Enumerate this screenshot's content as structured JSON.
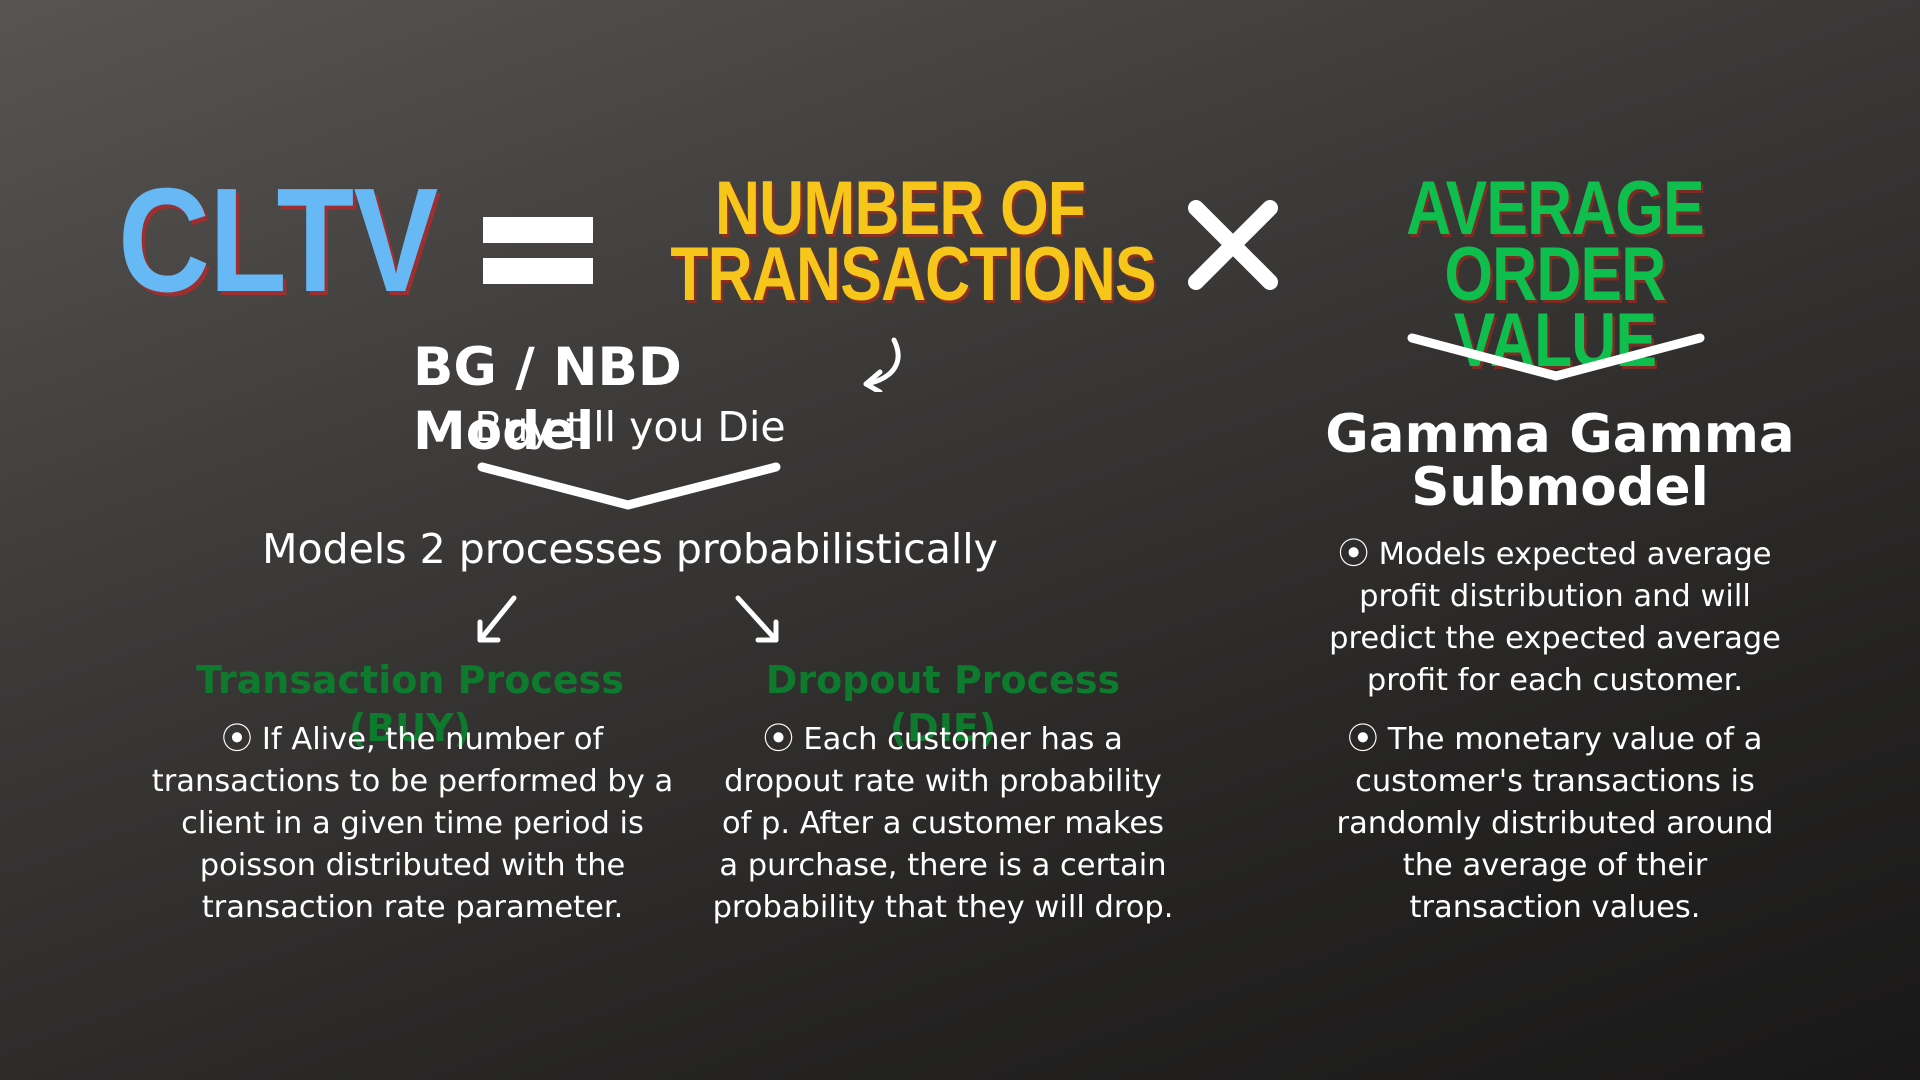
{
  "formula": {
    "lhs": "CLTV",
    "term1": [
      "NUMBER OF",
      "TRANSACTIONS"
    ],
    "term2": [
      "AVERAGE",
      "ORDER VALUE"
    ]
  },
  "bg_nbd": {
    "title": "BG / NBD Model",
    "subtitle": "Buy till you Die",
    "models": "Models 2 processes probabilistically",
    "transaction": {
      "title": "Transaction Process (BUY)",
      "description": "⦿ If Alive, the number of transactions to be performed by a client in a given time period is poisson distributed with the transaction rate parameter."
    },
    "dropout": {
      "title": "Dropout Process (DIE)",
      "description": "⦿ Each customer has a dropout rate with probability of p. After a customer makes a purchase, there is a certain probability that they will drop."
    }
  },
  "gamma_gamma": {
    "title": "Gamma Gamma Submodel",
    "point1": "⦿ Models expected average profit distribution and will predict the expected average profit for each customer.",
    "point2": "⦿ The monetary value of a customer's transactions is randomly distributed around the average of their transaction values."
  },
  "colors": {
    "cltv": "#66b9f4",
    "transactions": "#f7c61a",
    "order_value": "#0fbf4e",
    "process_titles": "#0e7a2e"
  },
  "icons": [
    "equals-icon",
    "multiply-icon",
    "curved-arrow-icon",
    "chevron-down-icon",
    "arrow-down-left-icon",
    "arrow-down-right-icon"
  ]
}
